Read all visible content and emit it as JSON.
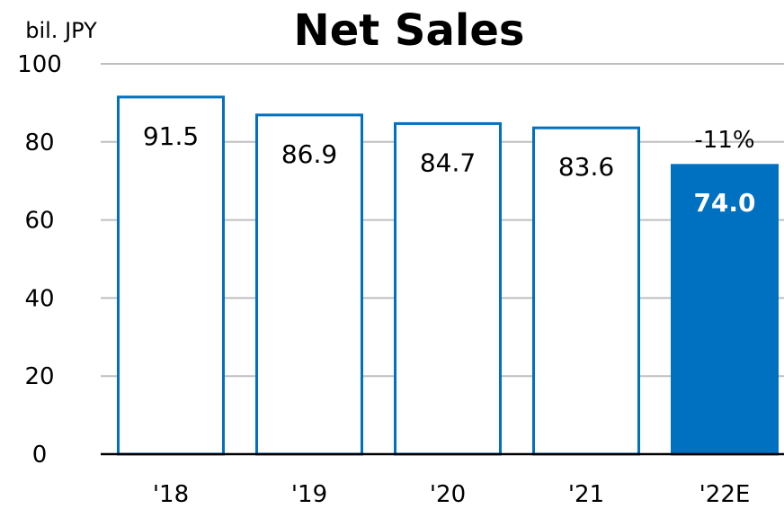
{
  "chart_data": {
    "type": "bar",
    "title": "Net Sales",
    "unit_label": "bil. JPY",
    "categories": [
      "'18",
      "'19",
      "'20",
      "'21",
      "'22E"
    ],
    "values": [
      91.5,
      86.9,
      84.7,
      83.6,
      74.0
    ],
    "value_labels": [
      "91.5",
      "86.9",
      "84.7",
      "83.6",
      "74.0"
    ],
    "highlight_index": 4,
    "annotation": "-11%",
    "ylim": [
      0,
      100
    ],
    "yticks": [
      0,
      20,
      40,
      60,
      80,
      100
    ],
    "grid": true,
    "colors": {
      "bar_outline": "#0070c0",
      "bar_fill": "#ffffff",
      "highlight_fill": "#0070c0",
      "grid": "#bfbfbf",
      "axis": "#000000"
    }
  }
}
